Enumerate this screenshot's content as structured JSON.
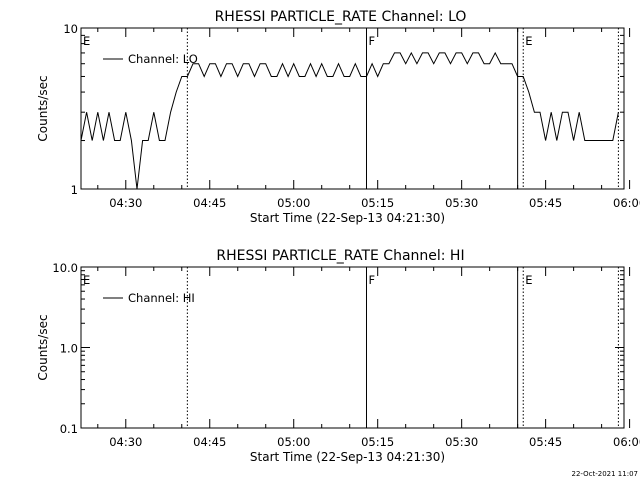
{
  "chart_data": [
    {
      "type": "line",
      "title": "RHESSI PARTICLE_RATE Channel: LO",
      "xlabel": "Start Time (22-Sep-13 04:21:30)",
      "ylabel": "Counts/sec",
      "y_scale": "log",
      "ylim": [
        1,
        10
      ],
      "xlim": [
        "04:22",
        "05:59"
      ],
      "x_ticks": [
        "04:30",
        "04:45",
        "05:00",
        "05:15",
        "05:30",
        "05:45",
        "06:00"
      ],
      "y_ticks": [
        "1",
        "10"
      ],
      "legend": {
        "placement": "top-left",
        "entries": [
          "Channel: LO"
        ]
      },
      "series": [
        {
          "name": "Channel: LO",
          "x": [
            "04:22",
            "04:23",
            "04:24",
            "04:25",
            "04:26",
            "04:27",
            "04:28",
            "04:29",
            "04:30",
            "04:31",
            "04:32",
            "04:33",
            "04:34",
            "04:35",
            "04:36",
            "04:37",
            "04:38",
            "04:39",
            "04:40",
            "04:41",
            "04:42",
            "04:43",
            "04:44",
            "04:45",
            "04:46",
            "04:47",
            "04:48",
            "04:49",
            "04:50",
            "04:51",
            "04:52",
            "04:53",
            "04:54",
            "04:55",
            "04:56",
            "04:57",
            "04:58",
            "04:59",
            "05:00",
            "05:01",
            "05:02",
            "05:03",
            "05:04",
            "05:05",
            "05:06",
            "05:07",
            "05:08",
            "05:09",
            "05:10",
            "05:11",
            "05:12",
            "05:13",
            "05:14",
            "05:15",
            "05:16",
            "05:17",
            "05:18",
            "05:19",
            "05:20",
            "05:21",
            "05:22",
            "05:23",
            "05:24",
            "05:25",
            "05:26",
            "05:27",
            "05:28",
            "05:29",
            "05:30",
            "05:31",
            "05:32",
            "05:33",
            "05:34",
            "05:35",
            "05:36",
            "05:37",
            "05:38",
            "05:39",
            "05:40",
            "05:41",
            "05:42",
            "05:43",
            "05:44",
            "05:45",
            "05:46",
            "05:47",
            "05:48",
            "05:49",
            "05:50",
            "05:51",
            "05:52",
            "05:53",
            "05:54",
            "05:55",
            "05:56",
            "05:57",
            "05:58"
          ],
          "values": [
            2,
            3,
            2,
            3,
            2,
            3,
            2,
            2,
            3,
            2,
            1,
            2,
            2,
            3,
            2,
            2,
            3,
            4,
            5,
            5,
            6,
            6,
            5,
            6,
            6,
            5,
            6,
            6,
            5,
            6,
            6,
            5,
            6,
            6,
            5,
            5,
            6,
            5,
            6,
            5,
            5,
            6,
            5,
            6,
            5,
            5,
            6,
            5,
            5,
            6,
            5,
            5,
            6,
            5,
            6,
            6,
            7,
            7,
            6,
            7,
            6,
            7,
            7,
            6,
            7,
            7,
            6,
            7,
            7,
            6,
            7,
            7,
            6,
            6,
            7,
            6,
            6,
            6,
            5,
            5,
            4,
            3,
            3,
            2,
            3,
            2,
            3,
            3,
            2,
            3,
            2,
            2,
            2,
            2,
            2,
            2,
            3
          ]
        }
      ],
      "annotations": [
        {
          "label": "E",
          "x": "04:22",
          "style": "solid"
        },
        {
          "label": "",
          "x": "04:41",
          "style": "dotted"
        },
        {
          "label": "F",
          "x": "05:13",
          "style": "solid"
        },
        {
          "label": "",
          "x": "05:40",
          "style": "solid"
        },
        {
          "label": "E",
          "x": "05:41",
          "style": "dotted"
        },
        {
          "label": "",
          "x": "05:58",
          "style": "dotted"
        }
      ]
    },
    {
      "type": "line",
      "title": "RHESSI PARTICLE_RATE Channel: HI",
      "xlabel": "Start Time (22-Sep-13 04:21:30)",
      "ylabel": "Counts/sec",
      "y_scale": "log",
      "ylim": [
        0.1,
        10
      ],
      "xlim": [
        "04:22",
        "05:59"
      ],
      "x_ticks": [
        "04:30",
        "04:45",
        "05:00",
        "05:15",
        "05:30",
        "05:45",
        "06:00"
      ],
      "y_ticks": [
        "0.1",
        "1.0",
        "10.0"
      ],
      "legend": {
        "placement": "top-left",
        "entries": [
          "Channel: HI"
        ]
      },
      "series": [
        {
          "name": "Channel: HI",
          "x": [],
          "values": []
        }
      ],
      "annotations": [
        {
          "label": "E",
          "x": "04:22",
          "style": "solid"
        },
        {
          "label": "",
          "x": "04:41",
          "style": "dotted"
        },
        {
          "label": "F",
          "x": "05:13",
          "style": "solid"
        },
        {
          "label": "",
          "x": "05:40",
          "style": "solid"
        },
        {
          "label": "E",
          "x": "05:41",
          "style": "dotted"
        },
        {
          "label": "",
          "x": "05:58",
          "style": "dotted"
        }
      ]
    }
  ],
  "footer": {
    "timestamp": "22-Oct-2021 11:07"
  },
  "colors": {
    "background": "#ffffff",
    "ink": "#000000"
  }
}
